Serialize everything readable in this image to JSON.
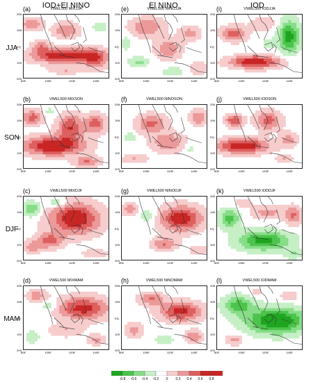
{
  "column_titles": [
    "IOD+El NINO",
    "El NINO",
    "IOD"
  ],
  "row_labels": [
    "JJA",
    "SON",
    "DJF",
    "MAM"
  ],
  "panels": [
    {
      "letter": "(a)",
      "title": "VWEL500 MIXJJA",
      "pattern": "mix_jja"
    },
    {
      "letter": "(e)",
      "title": "VWEL500 NINOJJA",
      "pattern": "nino_jja"
    },
    {
      "letter": "(i)",
      "title": "VWEL500 IODJJA",
      "pattern": "iod_jja"
    },
    {
      "letter": "(b)",
      "title": "VWEL500 MIXSON",
      "pattern": "mix_son"
    },
    {
      "letter": "(f)",
      "title": "VWEL500 NINOSON",
      "pattern": "nino_son"
    },
    {
      "letter": "(j)",
      "title": "VWEL500 IODSON",
      "pattern": "iod_son"
    },
    {
      "letter": "(c)",
      "title": "VWEL500 MIXDJF",
      "pattern": "mix_djf"
    },
    {
      "letter": "(g)",
      "title": "VWEL500 NINODJF",
      "pattern": "nino_djf"
    },
    {
      "letter": "(k)",
      "title": "VWEL500 IODDJF",
      "pattern": "iod_djf"
    },
    {
      "letter": "(d)",
      "title": "VWEL500 MIXMAM",
      "pattern": "mix_mam"
    },
    {
      "letter": "(h)",
      "title": "VWEL500 NINOMAM",
      "pattern": "nino_mam"
    },
    {
      "letter": "(l)",
      "title": "VWEL500 IODMAM",
      "pattern": "iod_mam"
    }
  ],
  "axis": {
    "y_ticks": [
      "20N",
      "10N",
      "EQ",
      "10S",
      "20S"
    ],
    "x_ticks": [
      "80E",
      "100E",
      "120E",
      "140E"
    ]
  },
  "colorbar": {
    "ticks": [
      "-0.8",
      "-0.6",
      "-0.4",
      "-0.2",
      "0",
      "0.2",
      "0.4",
      "0.6",
      "0.8"
    ],
    "colors": [
      "#1fa51f",
      "#4cc44c",
      "#88dd88",
      "#c6efc6",
      "#ffffff",
      "#f6cccc",
      "#ec9999",
      "#de5f5f",
      "#c82525"
    ]
  }
}
